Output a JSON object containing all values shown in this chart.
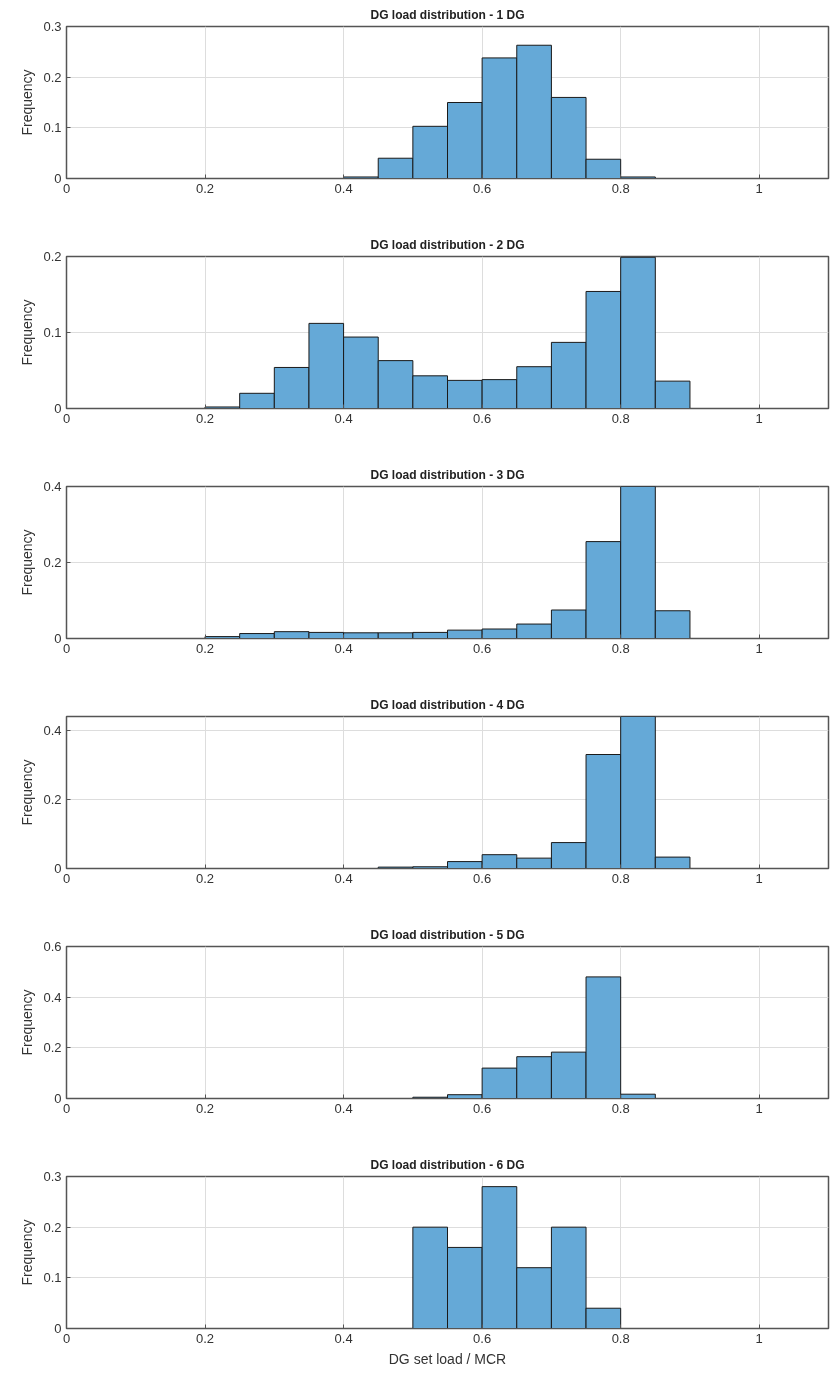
{
  "chart_data": [
    {
      "type": "histogram",
      "title": "DG load distribution - 1 DG",
      "ylabel": "Frequency",
      "color": "#65a9d7",
      "grid": true,
      "xlim": [
        0,
        1.1
      ],
      "xticks": [
        0,
        0.2,
        0.4,
        0.6,
        0.8,
        1
      ],
      "ylim": [
        0,
        0.3
      ],
      "yticks": [
        0,
        0.1,
        0.2,
        0.3
      ],
      "bins": [
        0,
        0.05,
        0.1,
        0.15,
        0.2,
        0.25,
        0.3,
        0.35,
        0.4,
        0.45,
        0.5,
        0.55,
        0.6,
        0.65,
        0.7,
        0.75,
        0.8,
        0.85,
        0.9,
        0.95,
        1.0,
        1.05,
        1.1
      ],
      "values": [
        0,
        0,
        0,
        0,
        0,
        0,
        0,
        0,
        0.003,
        0.04,
        0.103,
        0.15,
        0.238,
        0.263,
        0.16,
        0.038,
        0.003,
        0,
        0,
        0,
        0,
        0
      ]
    },
    {
      "type": "histogram",
      "title": "DG load distribution - 2 DG",
      "ylabel": "Frequency",
      "color": "#65a9d7",
      "grid": true,
      "xlim": [
        0,
        1.1
      ],
      "xticks": [
        0,
        0.2,
        0.4,
        0.6,
        0.8,
        1
      ],
      "ylim": [
        0,
        0.2
      ],
      "yticks": [
        0,
        0.1,
        0.2
      ],
      "bins": [
        0,
        0.05,
        0.1,
        0.15,
        0.2,
        0.25,
        0.3,
        0.35,
        0.4,
        0.45,
        0.5,
        0.55,
        0.6,
        0.65,
        0.7,
        0.75,
        0.8,
        0.85,
        0.9,
        0.95,
        1.0,
        1.05,
        1.1
      ],
      "values": [
        0,
        0,
        0,
        0,
        0.002,
        0.02,
        0.054,
        0.112,
        0.094,
        0.063,
        0.043,
        0.037,
        0.038,
        0.055,
        0.087,
        0.154,
        0.199,
        0.036,
        null,
        0,
        0,
        0
      ]
    },
    {
      "type": "histogram",
      "title": "DG load distribution - 3 DG",
      "ylabel": "Frequency",
      "color": "#65a9d7",
      "grid": true,
      "xlim": [
        0,
        1.1
      ],
      "xticks": [
        0,
        0.2,
        0.4,
        0.6,
        0.8,
        1
      ],
      "ylim": [
        0,
        0.4
      ],
      "yticks": [
        0,
        0.2,
        0.4
      ],
      "bins": [
        0,
        0.05,
        0.1,
        0.15,
        0.2,
        0.25,
        0.3,
        0.35,
        0.4,
        0.45,
        0.5,
        0.55,
        0.6,
        0.65,
        0.7,
        0.75,
        0.8,
        0.85,
        0.9,
        0.95,
        1.0,
        1.05,
        1.1
      ],
      "values": [
        0,
        0,
        0,
        0,
        0.005,
        0.013,
        0.018,
        0.016,
        0.015,
        0.015,
        0.016,
        0.022,
        0.025,
        0.038,
        0.075,
        0.255,
        0.4,
        0.073,
        0,
        0,
        0,
        0
      ]
    },
    {
      "type": "histogram",
      "title": "DG load distribution - 4 DG",
      "ylabel": "Frequency",
      "color": "#65a9d7",
      "grid": true,
      "xlim": [
        0,
        1.1
      ],
      "xticks": [
        0,
        0.2,
        0.4,
        0.6,
        0.8,
        1
      ],
      "ylim": [
        0,
        0.44
      ],
      "yticks": [
        0,
        0.2,
        0.4
      ],
      "bins": [
        0,
        0.05,
        0.1,
        0.15,
        0.2,
        0.25,
        0.3,
        0.35,
        0.4,
        0.45,
        0.5,
        0.55,
        0.6,
        0.65,
        0.7,
        0.75,
        0.8,
        0.85,
        0.9,
        0.95,
        1.0,
        1.05,
        1.1
      ],
      "values": [
        0,
        0,
        0,
        0,
        0,
        0,
        0,
        0,
        null,
        0.004,
        0.005,
        0.02,
        0.04,
        0.03,
        0.075,
        0.33,
        0.44,
        0.033,
        0,
        0,
        0,
        0
      ]
    },
    {
      "type": "histogram",
      "title": "DG load distribution - 5 DG",
      "ylabel": "Frequency",
      "color": "#65a9d7",
      "grid": true,
      "xlim": [
        0,
        1.1
      ],
      "xticks": [
        0,
        0.2,
        0.4,
        0.6,
        0.8,
        1
      ],
      "ylim": [
        0,
        0.6
      ],
      "yticks": [
        0,
        0.2,
        0.4,
        0.6
      ],
      "bins": [
        0,
        0.05,
        0.1,
        0.15,
        0.2,
        0.25,
        0.3,
        0.35,
        0.4,
        0.45,
        0.5,
        0.55,
        0.6,
        0.65,
        0.7,
        0.75,
        0.8,
        0.85,
        0.9,
        0.95,
        1.0,
        1.05,
        1.1
      ],
      "values": [
        0,
        0,
        0,
        0,
        0,
        0,
        0,
        0,
        0,
        null,
        0.005,
        0.015,
        0.12,
        0.165,
        0.183,
        0.48,
        0.017,
        0,
        0,
        0,
        0,
        0
      ]
    },
    {
      "type": "histogram",
      "title": "DG load distribution - 6 DG",
      "xlabel": "DG set load / MCR",
      "ylabel": "Frequency",
      "color": "#65a9d7",
      "grid": true,
      "xlim": [
        0,
        1.1
      ],
      "xticks": [
        0,
        0.2,
        0.4,
        0.6,
        0.8,
        1
      ],
      "ylim": [
        0,
        0.3
      ],
      "yticks": [
        0,
        0.1,
        0.2,
        0.3
      ],
      "bins": [
        0,
        0.05,
        0.1,
        0.15,
        0.2,
        0.25,
        0.3,
        0.35,
        0.4,
        0.45,
        0.5,
        0.55,
        0.6,
        0.65,
        0.7,
        0.75,
        0.8,
        0.85,
        0.9,
        0.95,
        1.0,
        1.05,
        1.1
      ],
      "values": [
        0,
        0,
        0,
        0,
        0,
        0,
        0,
        0,
        0,
        0,
        0.2,
        0.16,
        0.28,
        0.12,
        0.2,
        0.04,
        0,
        0,
        0,
        0,
        0,
        0
      ]
    }
  ]
}
